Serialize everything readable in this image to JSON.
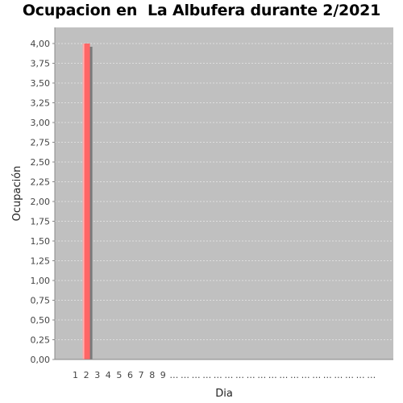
{
  "chart_data": {
    "type": "bar",
    "title": "Ocupacion en  La Albufera durante 2/2021",
    "xlabel": "Dia",
    "ylabel": "Ocupación",
    "ylim": [
      0,
      4.0
    ],
    "y_ticks": [
      "0,00",
      "0,25",
      "0,50",
      "0,75",
      "1,00",
      "1,25",
      "1,50",
      "1,75",
      "2,00",
      "2,25",
      "2,50",
      "2,75",
      "3,00",
      "3,25",
      "3,50",
      "3,75",
      "4,00"
    ],
    "categories": [
      "1",
      "2",
      "3",
      "4",
      "5",
      "6",
      "7",
      "8",
      "9",
      "…",
      "…",
      "…",
      "…",
      "…",
      "…",
      "…",
      "…",
      "…",
      "…",
      "…",
      "…",
      "…",
      "…",
      "…",
      "…",
      "…",
      "…",
      "…"
    ],
    "series": [
      {
        "values": [
          0,
          4,
          0,
          0,
          0,
          0,
          0,
          0,
          0,
          0,
          0,
          0,
          0,
          0,
          0,
          0,
          0,
          0,
          0,
          0,
          0,
          0,
          0,
          0,
          0,
          0,
          0,
          0
        ]
      }
    ],
    "grid": true,
    "colors": {
      "plot_bg": "#c0c0c0",
      "bar": "#ff6666",
      "grid": "#e8e8e8",
      "shadow": "#7a7a7a"
    }
  }
}
